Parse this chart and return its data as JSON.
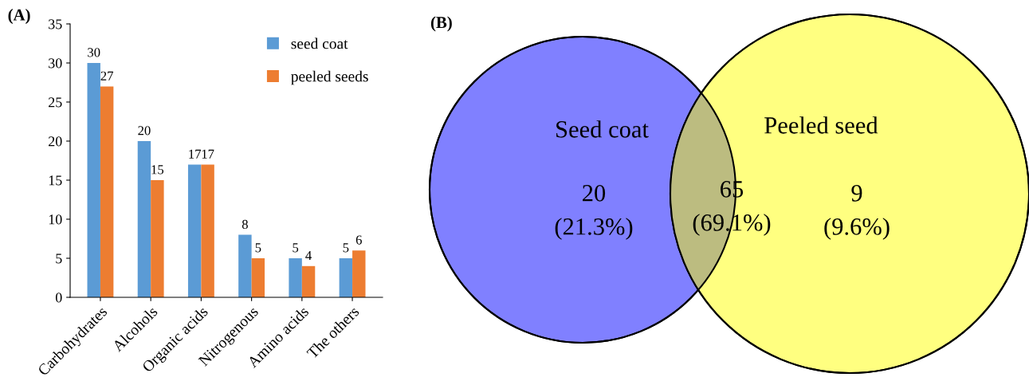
{
  "chart_data": [
    {
      "type": "bar",
      "title": "(A)",
      "categories": [
        "Carbohydrates",
        "Alcohols",
        "Organic acids",
        "Nitrogenous",
        "Amino acids",
        "The others"
      ],
      "series": [
        {
          "name": "seed coat",
          "color": "#5b9bd5",
          "values": [
            30,
            20,
            17,
            8,
            5,
            5
          ]
        },
        {
          "name": "peeled seeds",
          "color": "#ed7d31",
          "values": [
            27,
            15,
            17,
            5,
            4,
            6
          ]
        }
      ],
      "ylim": [
        0,
        35
      ],
      "yticks": [
        0,
        5,
        10,
        15,
        20,
        25,
        30,
        35
      ],
      "data_labels": true,
      "legend": "top right",
      "grid": false
    },
    {
      "type": "other",
      "title": "(B)",
      "categories": [
        "Seed coat",
        null,
        "Peeled seed"
      ],
      "values": [
        20,
        65,
        9
      ],
      "data_labels": true,
      "annotations": [
        "(21.3%)",
        "(69.1%)",
        "(9.6%)"
      ],
      "colors": [
        "#8080ff",
        "#bcbc80",
        "#ffff80"
      ]
    }
  ]
}
